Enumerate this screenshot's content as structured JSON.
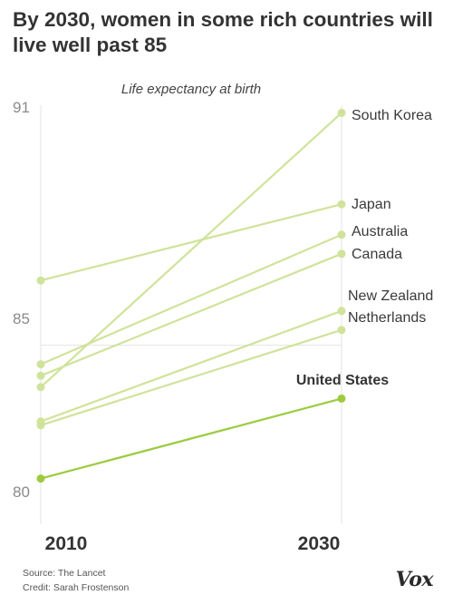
{
  "title": "By 2030, women in some rich countries will live well past 85",
  "source": "Source: The Lancet",
  "credit": "Credit: Sarah Frostenson",
  "logo": "Vox",
  "colors": {
    "line": "#cfe39a",
    "highlight": "#9ccb3f",
    "gridline": "#e3e3e3",
    "text": "#333333"
  },
  "chart_data": {
    "type": "line",
    "subtitle": "Life expectancy at birth",
    "x": [
      "2010",
      "2030"
    ],
    "ylim": [
      80,
      91
    ],
    "yticks": [
      "80",
      "85",
      "91"
    ],
    "ytick_values": [
      80,
      85,
      91
    ],
    "series": [
      {
        "name": "South Korea",
        "values": [
          83.6,
          90.8
        ],
        "highlight": false
      },
      {
        "name": "Japan",
        "values": [
          86.4,
          88.4
        ],
        "highlight": false
      },
      {
        "name": "Australia",
        "values": [
          84.2,
          87.6
        ],
        "highlight": false
      },
      {
        "name": "Canada",
        "values": [
          83.9,
          87.1
        ],
        "highlight": false
      },
      {
        "name": "New Zealand",
        "values": [
          82.7,
          85.6
        ],
        "highlight": false
      },
      {
        "name": "Netherlands",
        "values": [
          82.6,
          85.1
        ],
        "highlight": false
      },
      {
        "name": "United States",
        "values": [
          81.2,
          83.3
        ],
        "highlight": true
      }
    ]
  }
}
